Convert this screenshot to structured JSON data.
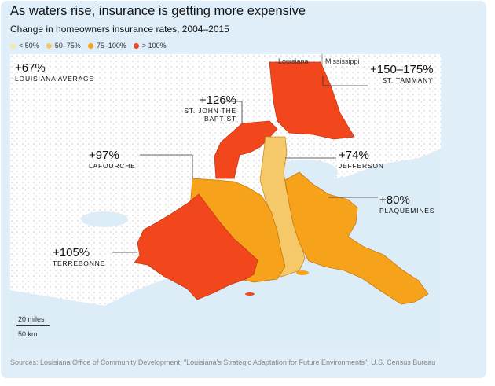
{
  "title": "As waters rise, insurance is getting more expensive",
  "subtitle": "Change in homeowners insurance rates, 2004–2015",
  "legend": [
    {
      "label": "< 50%",
      "color": "#f3e9a6"
    },
    {
      "label": "50–75%",
      "color": "#f5c96a"
    },
    {
      "label": "75–100%",
      "color": "#f7a21b"
    },
    {
      "label": "> 100%",
      "color": "#f2461c"
    }
  ],
  "state_labels": {
    "left": "Louisiana",
    "right": "Mississippi"
  },
  "parishes": [
    {
      "key": "louisiana_average",
      "pct": "+67%",
      "name": "LOUISIANA AVERAGE"
    },
    {
      "key": "st_tammany",
      "pct": "+150–175%",
      "name": "ST. TAMMANY",
      "color": "#f2461c"
    },
    {
      "key": "st_john",
      "pct": "+126%",
      "name": "ST. JOHN THE BAPTIST",
      "color": "#f2461c"
    },
    {
      "key": "lafourche",
      "pct": "+97%",
      "name": "LAFOURCHE",
      "color": "#f7a21b"
    },
    {
      "key": "jefferson",
      "pct": "+74%",
      "name": "JEFFERSON",
      "color": "#f5c96a"
    },
    {
      "key": "plaquemines",
      "pct": "+80%",
      "name": "PLAQUEMINES",
      "color": "#f7a21b"
    },
    {
      "key": "terrebonne",
      "pct": "+105%",
      "name": "TERREBONNE",
      "color": "#f2461c"
    }
  ],
  "scale": {
    "miles": "20 miles",
    "km": "50 km"
  },
  "source": "Sources: Louisiana Office of Community Development, \"Louisiana's Strategic Adaptation for Future Environments\"; U.S. Census Bureau"
}
